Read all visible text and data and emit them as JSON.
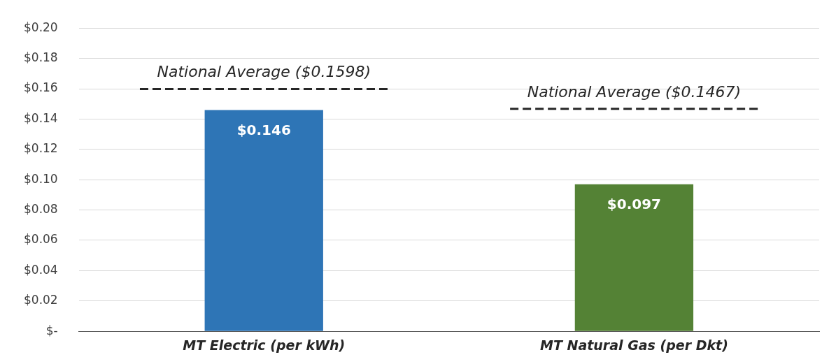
{
  "chart_data": {
    "type": "bar",
    "categories": [
      "MT Electric (per kWh)",
      "MT Natural Gas (per Dkt)"
    ],
    "values": [
      0.146,
      0.097
    ],
    "colors": [
      "#2e75b6",
      "#548235"
    ],
    "value_labels": [
      "$0.146",
      "$0.097"
    ],
    "ylim": [
      0,
      0.2
    ],
    "yticks": [
      {
        "value": 0,
        "label": "$-"
      },
      {
        "value": 0.02,
        "label": "$0.02"
      },
      {
        "value": 0.04,
        "label": "$0.04"
      },
      {
        "value": 0.06,
        "label": "$0.06"
      },
      {
        "value": 0.08,
        "label": "$0.08"
      },
      {
        "value": 0.1,
        "label": "$0.10"
      },
      {
        "value": 0.12,
        "label": "$0.12"
      },
      {
        "value": 0.14,
        "label": "$0.14"
      },
      {
        "value": 0.16,
        "label": "$0.16"
      },
      {
        "value": 0.18,
        "label": "$0.18"
      },
      {
        "value": 0.2,
        "label": "$0.20"
      }
    ],
    "grid": "y",
    "ref_lines": [
      {
        "axis": "y",
        "value": 0.1598,
        "label": "National Average ($0.1598)",
        "color": "#262626",
        "line_style": "dashed"
      },
      {
        "axis": "y",
        "value": 0.1467,
        "label": "National Average ($0.1467)",
        "color": "#262626",
        "line_style": "dashed"
      }
    ]
  }
}
